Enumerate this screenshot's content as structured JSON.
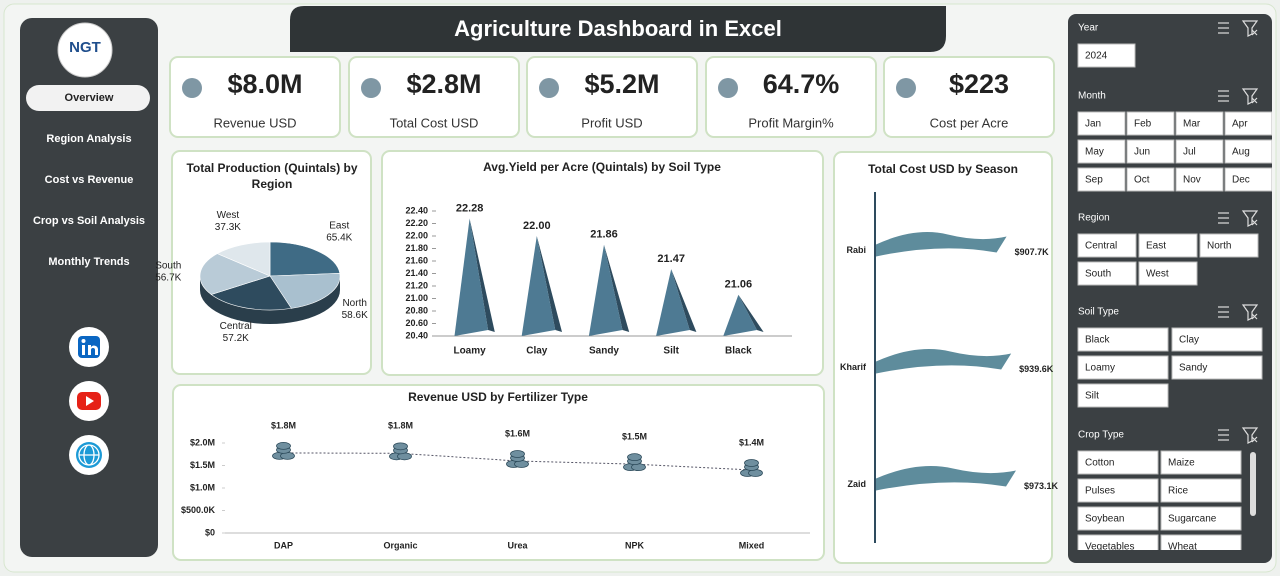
{
  "header": {
    "title": "Agriculture Dashboard in Excel"
  },
  "logo": {
    "text": "NGT"
  },
  "nav": [
    "Overview",
    "Region Analysis",
    "Cost vs Revenue",
    "Crop vs Soil Analysis",
    "Monthly Trends"
  ],
  "kpis": [
    {
      "value": "$8.0M",
      "label": "Revenue USD"
    },
    {
      "value": "$2.8M",
      "label": "Total Cost USD"
    },
    {
      "value": "$5.2M",
      "label": "Profit USD"
    },
    {
      "value": "64.7%",
      "label": "Profit Margin%"
    },
    {
      "value": "$223",
      "label": "Cost per Acre"
    }
  ],
  "slicers": [
    {
      "title": "Year",
      "items": [
        "2024"
      ]
    },
    {
      "title": "Month",
      "items": [
        "Jan",
        "Feb",
        "Mar",
        "Apr",
        "May",
        "Jun",
        "Jul",
        "Aug",
        "Sep",
        "Oct",
        "Nov",
        "Dec"
      ]
    },
    {
      "title": "Region",
      "items": [
        "Central",
        "East",
        "North",
        "South",
        "West"
      ]
    },
    {
      "title": "Soil Type",
      "items": [
        "Black",
        "Clay",
        "Loamy",
        "Sandy",
        "Silt"
      ]
    },
    {
      "title": "Crop Type",
      "items": [
        "Cotton",
        "Maize",
        "Pulses",
        "Rice",
        "Soybean",
        "Sugarcane",
        "Vegetables",
        "Wheat"
      ]
    }
  ],
  "chart_data": [
    {
      "type": "pie",
      "title": "Total Production (Quintals) by Region",
      "categories": [
        "East",
        "North",
        "Central",
        "South",
        "West"
      ],
      "values": [
        65400,
        58600,
        57200,
        56700,
        37300
      ],
      "value_labels": [
        "65.4K",
        "58.6K",
        "57.2K",
        "56.7K",
        "37.3K"
      ],
      "colors": [
        "#3f6b85",
        "#a9c0cf",
        "#2e4b5e",
        "#b9cbd7",
        "#dfe7ec"
      ]
    },
    {
      "type": "bar",
      "title": "Avg.Yield per Acre (Quintals) by Soil Type",
      "categories": [
        "Loamy",
        "Clay",
        "Sandy",
        "Silt",
        "Black"
      ],
      "values": [
        22.28,
        22.0,
        21.86,
        21.47,
        21.06
      ],
      "value_labels": [
        "22.28",
        "22.00",
        "21.86",
        "21.47",
        "21.06"
      ],
      "color": "#4e7a93",
      "ylim": [
        20.4,
        22.4
      ],
      "yticks": [
        {
          "value": 20.4,
          "label": "20.40"
        },
        {
          "value": 20.6,
          "label": "20.60"
        },
        {
          "value": 20.8,
          "label": "20.80"
        },
        {
          "value": 21.0,
          "label": "21.00"
        },
        {
          "value": 21.2,
          "label": "21.20"
        },
        {
          "value": 21.4,
          "label": "21.40"
        },
        {
          "value": 21.6,
          "label": "21.60"
        },
        {
          "value": 21.8,
          "label": "21.80"
        },
        {
          "value": 22.0,
          "label": "22.00"
        },
        {
          "value": 22.2,
          "label": "22.20"
        },
        {
          "value": 22.4,
          "label": "22.40"
        }
      ]
    },
    {
      "type": "line",
      "title": "Revenue USD by Fertilizer Type",
      "categories": [
        "DAP",
        "Organic",
        "Urea",
        "NPK",
        "Mixed"
      ],
      "values": [
        1780000,
        1770000,
        1600000,
        1530000,
        1400000
      ],
      "value_labels": [
        "$1.8M",
        "$1.8M",
        "$1.6M",
        "$1.5M",
        "$1.4M"
      ],
      "color": "#6f8f9f",
      "ylim": [
        0,
        2000000
      ],
      "yticks": [
        {
          "value": 0,
          "label": "$0"
        },
        {
          "value": 500000,
          "label": "$500.0K"
        },
        {
          "value": 1000000,
          "label": "$1.0M"
        },
        {
          "value": 1500000,
          "label": "$1.5M"
        },
        {
          "value": 2000000,
          "label": "$2.0M"
        }
      ]
    },
    {
      "type": "hbar",
      "title": "Total Cost USD by Season",
      "categories": [
        "Rabi",
        "Kharif",
        "Zaid"
      ],
      "values": [
        907700,
        939600,
        973100
      ],
      "value_labels": [
        "$907.7K",
        "$939.6K",
        "$973.1K"
      ],
      "color": "#5e8c9c"
    }
  ]
}
